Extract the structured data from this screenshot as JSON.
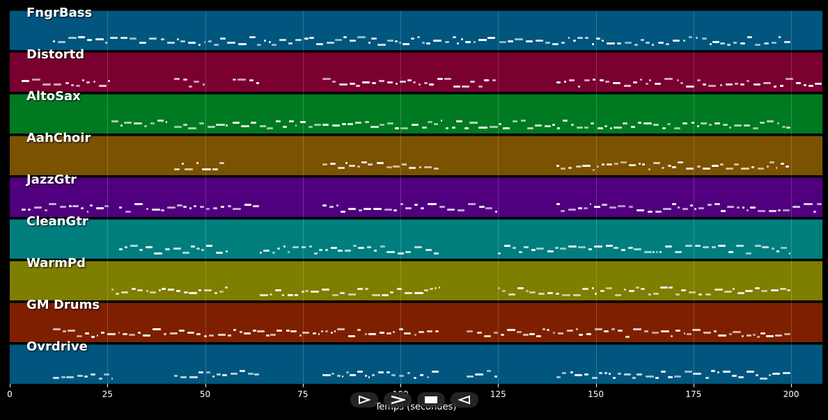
{
  "tracks": [
    {
      "name": "FngrBass",
      "color": "#00567e"
    },
    {
      "name": "Distortd",
      "color": "#7a0030"
    },
    {
      "name": "AltoSax",
      "color": "#007a20"
    },
    {
      "name": "AahChoir",
      "color": "#7a5200"
    },
    {
      "name": "JazzGtr",
      "color": "#50007e"
    },
    {
      "name": "CleanGtr",
      "color": "#007e7e"
    },
    {
      "name": "WarmPd",
      "color": "#7e7e00"
    },
    {
      "name": "GM Drums",
      "color": "#7e2000"
    },
    {
      "name": "Ovrdrive",
      "color": "#00567e"
    }
  ],
  "axis": {
    "ticks": [
      "0",
      "25",
      "50",
      "75",
      "100",
      "125",
      "150",
      "175",
      "200"
    ],
    "xlabel": "Temps (secondes)",
    "max_seconds": 208
  },
  "controls": [
    {
      "name": "play",
      "icon": "play-icon"
    },
    {
      "name": "forward",
      "icon": "forward-icon"
    },
    {
      "name": "stop",
      "icon": "stop-icon"
    },
    {
      "name": "rewind",
      "icon": "rewind-icon"
    }
  ],
  "note_ranges": {
    "FngrBass": [
      [
        11,
        200
      ]
    ],
    "Distortd": [
      [
        3,
        26
      ],
      [
        42,
        50
      ],
      [
        57,
        64
      ],
      [
        80,
        125
      ],
      [
        140,
        208
      ]
    ],
    "AltoSax": [
      [
        26,
        40
      ],
      [
        42,
        56
      ],
      [
        57,
        80
      ],
      [
        80,
        200
      ]
    ],
    "AahChoir": [
      [
        42,
        55
      ],
      [
        80,
        110
      ],
      [
        140,
        200
      ]
    ],
    "JazzGtr": [
      [
        3,
        26
      ],
      [
        28,
        64
      ],
      [
        80,
        125
      ],
      [
        140,
        208
      ]
    ],
    "CleanGtr": [
      [
        28,
        56
      ],
      [
        64,
        110
      ],
      [
        125,
        200
      ]
    ],
    "WarmPd": [
      [
        26,
        56
      ],
      [
        64,
        110
      ],
      [
        125,
        200
      ]
    ],
    "GM Drums": [
      [
        11,
        110
      ],
      [
        117,
        200
      ]
    ],
    "Ovrdrive": [
      [
        11,
        26
      ],
      [
        42,
        64
      ],
      [
        80,
        110
      ],
      [
        117,
        125
      ],
      [
        140,
        200
      ]
    ]
  }
}
